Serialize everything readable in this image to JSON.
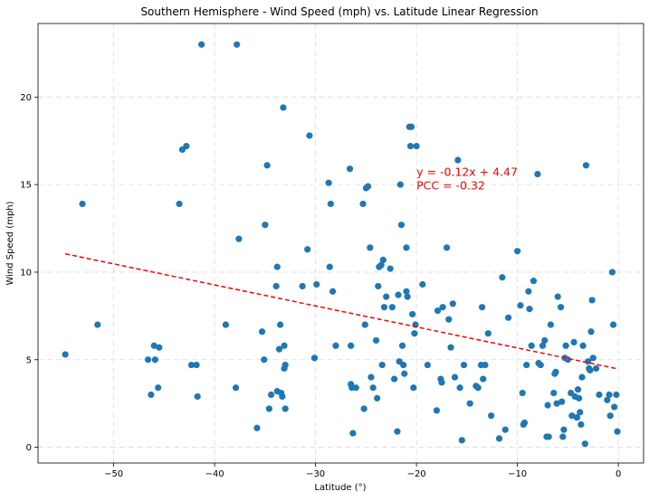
{
  "chart_data": {
    "type": "scatter",
    "title": "Southern Hemisphere - Wind Speed (mph) vs. Latitude Linear Regression",
    "xlabel": "Latitude (°)",
    "ylabel": "Wind Speed (mph)",
    "xlim": [
      -57.5,
      2.5
    ],
    "ylim": [
      -0.9,
      24.2
    ],
    "xticks": [
      -50,
      -40,
      -30,
      -20,
      -10,
      0
    ],
    "yticks": [
      0,
      5,
      10,
      15,
      20
    ],
    "xtick_labels": [
      "−50",
      "−40",
      "−30",
      "−20",
      "−10",
      "0"
    ],
    "ytick_labels": [
      "0",
      "5",
      "10",
      "15",
      "20"
    ],
    "grid": true,
    "point_color": "#1f77b4",
    "regression": {
      "slope": -0.12,
      "intercept": 4.47,
      "x_range": [
        -54.8,
        -0.1
      ],
      "color": "#ff0000",
      "equation_text": "y = -0.12x + 4.47",
      "pcc_text": "PCC = -0.32",
      "annotation_at": [
        -20,
        15.5
      ]
    },
    "points": [
      [
        -54.8,
        5.3
      ],
      [
        -53.1,
        13.9
      ],
      [
        -51.6,
        7.0
      ],
      [
        -46.6,
        5.0
      ],
      [
        -46.3,
        3.0
      ],
      [
        -46.0,
        5.8
      ],
      [
        -45.9,
        5.0
      ],
      [
        -45.6,
        3.4
      ],
      [
        -45.5,
        5.7
      ],
      [
        -43.5,
        13.9
      ],
      [
        -43.2,
        17.0
      ],
      [
        -42.8,
        17.2
      ],
      [
        -42.3,
        4.7
      ],
      [
        -41.8,
        4.7
      ],
      [
        -41.7,
        2.9
      ],
      [
        -41.3,
        23.0
      ],
      [
        -38.9,
        7.0
      ],
      [
        -37.9,
        3.4
      ],
      [
        -37.8,
        23.0
      ],
      [
        -37.6,
        11.9
      ],
      [
        -35.8,
        1.1
      ],
      [
        -35.3,
        6.6
      ],
      [
        -35.1,
        5.0
      ],
      [
        -35.0,
        12.7
      ],
      [
        -34.8,
        16.1
      ],
      [
        -34.6,
        2.2
      ],
      [
        -34.4,
        3.0
      ],
      [
        -33.9,
        9.2
      ],
      [
        -33.8,
        10.3
      ],
      [
        -33.8,
        3.2
      ],
      [
        -33.6,
        5.6
      ],
      [
        -33.5,
        7.0
      ],
      [
        -33.4,
        3.1
      ],
      [
        -33.3,
        2.9
      ],
      [
        -33.2,
        19.4
      ],
      [
        -33.1,
        4.5
      ],
      [
        -33.1,
        5.8
      ],
      [
        -33.0,
        4.7
      ],
      [
        -33.0,
        2.2
      ],
      [
        -31.3,
        9.2
      ],
      [
        -30.8,
        11.3
      ],
      [
        -30.6,
        17.8
      ],
      [
        -30.1,
        5.1
      ],
      [
        -29.9,
        9.3
      ],
      [
        -28.7,
        15.1
      ],
      [
        -28.6,
        10.3
      ],
      [
        -28.5,
        13.9
      ],
      [
        -28.3,
        8.9
      ],
      [
        -28.0,
        5.8
      ],
      [
        -26.6,
        15.9
      ],
      [
        -26.5,
        5.8
      ],
      [
        -26.5,
        3.6
      ],
      [
        -26.4,
        3.4
      ],
      [
        -26.3,
        0.8
      ],
      [
        -26.0,
        3.4
      ],
      [
        -25.3,
        13.9
      ],
      [
        -25.2,
        2.2
      ],
      [
        -25.1,
        7.0
      ],
      [
        -25.0,
        14.8
      ],
      [
        -24.8,
        14.9
      ],
      [
        -24.6,
        11.4
      ],
      [
        -24.5,
        4.0
      ],
      [
        -24.3,
        3.4
      ],
      [
        -24.0,
        6.1
      ],
      [
        -23.9,
        2.8
      ],
      [
        -23.8,
        9.2
      ],
      [
        -23.7,
        10.3
      ],
      [
        -23.5,
        10.4
      ],
      [
        -23.4,
        4.7
      ],
      [
        -23.3,
        10.7
      ],
      [
        -23.2,
        8.0
      ],
      [
        -23.0,
        8.6
      ],
      [
        -22.6,
        10.2
      ],
      [
        -22.4,
        8.0
      ],
      [
        -22.2,
        3.9
      ],
      [
        -21.9,
        0.9
      ],
      [
        -21.8,
        8.7
      ],
      [
        -21.7,
        4.9
      ],
      [
        -21.6,
        15.0
      ],
      [
        -21.5,
        12.7
      ],
      [
        -21.4,
        5.8
      ],
      [
        -21.3,
        4.7
      ],
      [
        -21.2,
        4.2
      ],
      [
        -21.0,
        11.4
      ],
      [
        -21.0,
        8.9
      ],
      [
        -20.9,
        8.6
      ],
      [
        -20.7,
        18.3
      ],
      [
        -20.6,
        17.2
      ],
      [
        -20.5,
        18.3
      ],
      [
        -20.4,
        7.6
      ],
      [
        -20.3,
        3.4
      ],
      [
        -20.2,
        6.5
      ],
      [
        -20.1,
        7.0
      ],
      [
        -20.0,
        17.2
      ],
      [
        -19.4,
        9.3
      ],
      [
        -18.9,
        4.7
      ],
      [
        -18.0,
        2.1
      ],
      [
        -17.9,
        7.8
      ],
      [
        -17.6,
        3.9
      ],
      [
        -17.5,
        3.7
      ],
      [
        -17.4,
        8.0
      ],
      [
        -17.0,
        11.4
      ],
      [
        -16.8,
        7.3
      ],
      [
        -16.6,
        5.7
      ],
      [
        -16.4,
        8.2
      ],
      [
        -16.2,
        4.0
      ],
      [
        -15.9,
        16.4
      ],
      [
        -15.7,
        3.4
      ],
      [
        -15.5,
        0.4
      ],
      [
        -15.3,
        4.7
      ],
      [
        -14.7,
        2.5
      ],
      [
        -14.1,
        3.5
      ],
      [
        -13.9,
        3.4
      ],
      [
        -13.6,
        4.7
      ],
      [
        -13.5,
        8.0
      ],
      [
        -13.4,
        3.9
      ],
      [
        -13.2,
        4.7
      ],
      [
        -12.9,
        6.5
      ],
      [
        -12.6,
        1.8
      ],
      [
        -11.8,
        0.5
      ],
      [
        -11.5,
        9.7
      ],
      [
        -11.2,
        1.0
      ],
      [
        -10.9,
        7.4
      ],
      [
        -10.0,
        11.2
      ],
      [
        -9.7,
        8.1
      ],
      [
        -9.5,
        3.1
      ],
      [
        -9.4,
        1.3
      ],
      [
        -9.3,
        1.4
      ],
      [
        -9.1,
        4.7
      ],
      [
        -8.9,
        8.9
      ],
      [
        -8.8,
        7.9
      ],
      [
        -8.6,
        5.8
      ],
      [
        -8.4,
        9.5
      ],
      [
        -8.0,
        15.6
      ],
      [
        -7.9,
        4.8
      ],
      [
        -7.7,
        4.7
      ],
      [
        -7.5,
        5.8
      ],
      [
        -7.3,
        6.1
      ],
      [
        -7.1,
        0.6
      ],
      [
        -7.0,
        2.4
      ],
      [
        -6.9,
        0.6
      ],
      [
        -6.7,
        7.0
      ],
      [
        -6.4,
        3.1
      ],
      [
        -6.3,
        4.2
      ],
      [
        -6.2,
        4.3
      ],
      [
        -6.1,
        2.5
      ],
      [
        -6.0,
        8.6
      ],
      [
        -5.7,
        8.0
      ],
      [
        -5.6,
        2.6
      ],
      [
        -5.5,
        0.6
      ],
      [
        -5.4,
        1.0
      ],
      [
        -5.3,
        5.1
      ],
      [
        -5.2,
        5.8
      ],
      [
        -5.0,
        5.0
      ],
      [
        -4.7,
        3.1
      ],
      [
        -4.6,
        1.8
      ],
      [
        -4.4,
        6.0
      ],
      [
        -4.3,
        2.9
      ],
      [
        -4.1,
        1.7
      ],
      [
        -4.0,
        3.3
      ],
      [
        -3.9,
        2.8
      ],
      [
        -3.8,
        2.0
      ],
      [
        -3.7,
        1.3
      ],
      [
        -3.6,
        4.0
      ],
      [
        -3.5,
        5.8
      ],
      [
        -3.3,
        0.2
      ],
      [
        -3.2,
        16.1
      ],
      [
        -3.0,
        4.9
      ],
      [
        -2.9,
        4.5
      ],
      [
        -2.8,
        4.4
      ],
      [
        -2.7,
        6.6
      ],
      [
        -2.6,
        8.4
      ],
      [
        -2.5,
        5.1
      ],
      [
        -2.2,
        4.5
      ],
      [
        -1.9,
        3.0
      ],
      [
        -1.1,
        2.7
      ],
      [
        -0.9,
        3.0
      ],
      [
        -0.8,
        1.8
      ],
      [
        -0.6,
        10.0
      ],
      [
        -0.5,
        7.0
      ],
      [
        -0.4,
        2.3
      ],
      [
        -0.2,
        3.0
      ],
      [
        -0.1,
        0.9
      ]
    ]
  }
}
